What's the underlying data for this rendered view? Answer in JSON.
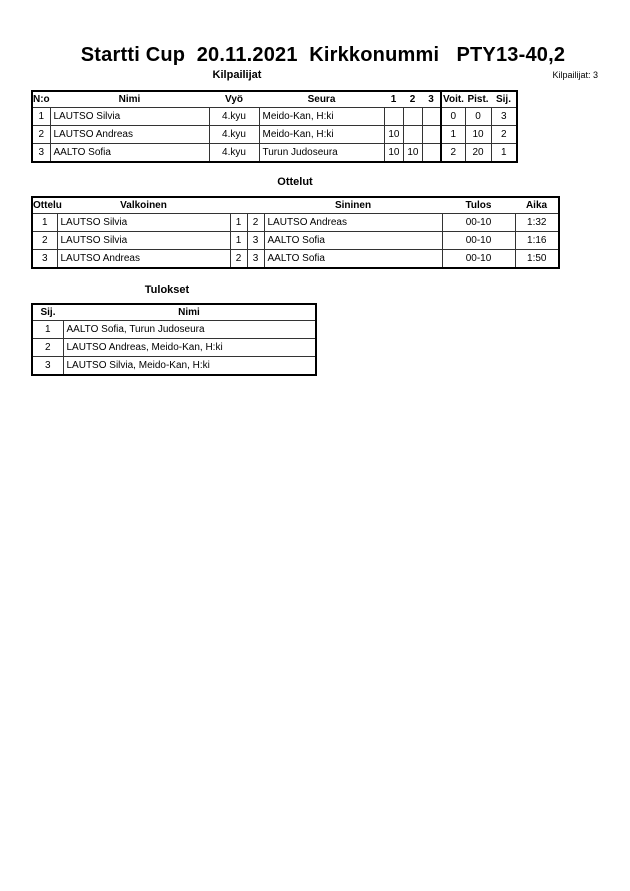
{
  "title": "Startti Cup  20.11.2021  Kirkkonummi   PTY13-40,2",
  "competitors": {
    "heading": "Kilpailijat",
    "count_label": "Kilpailijat: 3",
    "columns": [
      "N:o",
      "Nimi",
      "Vyö",
      "Seura",
      "1",
      "2",
      "3",
      "Voit.",
      "Pist.",
      "Sij."
    ],
    "rows": [
      {
        "no": "1",
        "name": "LAUTSO Silvia",
        "belt": "4.kyu",
        "club": "Meido-Kan, H:ki",
        "r1": "",
        "r2": "",
        "r3": "",
        "wins": "0",
        "points": "0",
        "place": "3"
      },
      {
        "no": "2",
        "name": "LAUTSO Andreas",
        "belt": "4.kyu",
        "club": "Meido-Kan, H:ki",
        "r1": "10",
        "r2": "",
        "r3": "",
        "wins": "1",
        "points": "10",
        "place": "2"
      },
      {
        "no": "3",
        "name": "AALTO Sofia",
        "belt": "4.kyu",
        "club": "Turun Judoseura",
        "r1": "10",
        "r2": "10",
        "r3": "",
        "wins": "2",
        "points": "20",
        "place": "1"
      }
    ]
  },
  "matches": {
    "heading": "Ottelut",
    "columns": [
      "Ottelu",
      "Valkoinen",
      "Sininen",
      "Tulos",
      "Aika"
    ],
    "rows": [
      {
        "match": "1",
        "white": "LAUTSO Silvia",
        "white_no": "1",
        "blue_no": "2",
        "blue": "LAUTSO Andreas",
        "result": "00-10",
        "time": "1:32"
      },
      {
        "match": "2",
        "white": "LAUTSO Silvia",
        "white_no": "1",
        "blue_no": "3",
        "blue": "AALTO Sofia",
        "result": "00-10",
        "time": "1:16"
      },
      {
        "match": "3",
        "white": "LAUTSO Andreas",
        "white_no": "2",
        "blue_no": "3",
        "blue": "AALTO Sofia",
        "result": "00-10",
        "time": "1:50"
      }
    ]
  },
  "results": {
    "heading": "Tulokset",
    "columns": [
      "Sij.",
      "Nimi"
    ],
    "rows": [
      {
        "place": "1",
        "name": "AALTO Sofia, Turun Judoseura"
      },
      {
        "place": "2",
        "name": "LAUTSO Andreas, Meido-Kan, H:ki"
      },
      {
        "place": "3",
        "name": "LAUTSO Silvia, Meido-Kan, H:ki"
      }
    ]
  }
}
